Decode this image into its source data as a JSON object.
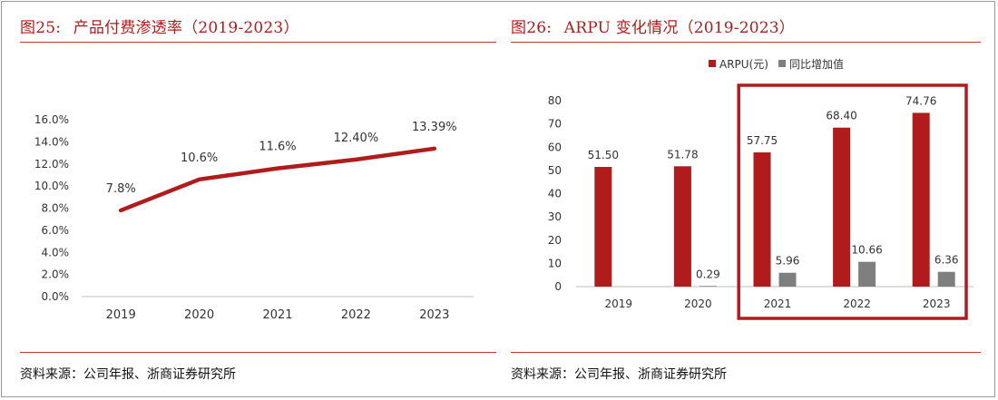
{
  "left_panel": {
    "fig_label": "图25:",
    "title": "产品付费渗透率（2019-2023）",
    "source": "资料来源：公司年报、浙商证券研究所"
  },
  "right_panel": {
    "fig_label": "图26:",
    "title": "ARPU 变化情况（2019-2023）",
    "source": "资料来源：公司年报、浙商证券研究所"
  },
  "colors": {
    "title_red": "#b01c1c",
    "line_red": "#b01c1c",
    "bar_red": "#b01c1c",
    "bar_gray": "#7f7f7f",
    "highlight_box": "#b01c1c"
  },
  "chart_data": [
    {
      "type": "line",
      "x": [
        "2019",
        "2020",
        "2021",
        "2022",
        "2023"
      ],
      "series": [
        {
          "values": [
            7.8,
            10.6,
            11.6,
            12.4,
            13.39
          ],
          "labels": [
            "7.8%",
            "10.6%",
            "11.6%",
            "12.40%",
            "13.39%"
          ]
        }
      ],
      "yticks": [
        "0.0%",
        "2.0%",
        "4.0%",
        "6.0%",
        "8.0%",
        "10.0%",
        "12.0%",
        "14.0%",
        "16.0%"
      ],
      "ylim": [
        0,
        16
      ],
      "grid": false
    },
    {
      "type": "bar",
      "categories": [
        "2019",
        "2020",
        "2021",
        "2022",
        "2023"
      ],
      "series": [
        {
          "name": "ARPU(元)",
          "values": [
            51.5,
            51.78,
            57.75,
            68.4,
            74.76
          ],
          "labels": [
            "51.50",
            "51.78",
            "57.75",
            "68.40",
            "74.76"
          ]
        },
        {
          "name": "同比增加值",
          "values": [
            null,
            0.29,
            5.96,
            10.66,
            6.36
          ],
          "labels": [
            "",
            "0.29",
            "5.96",
            "10.66",
            "6.36"
          ]
        }
      ],
      "yticks": [
        "0",
        "10",
        "20",
        "30",
        "40",
        "50",
        "60",
        "70",
        "80"
      ],
      "ylim": [
        0,
        80
      ],
      "legend": "top",
      "highlight": "2021-2023",
      "grid": false
    }
  ]
}
